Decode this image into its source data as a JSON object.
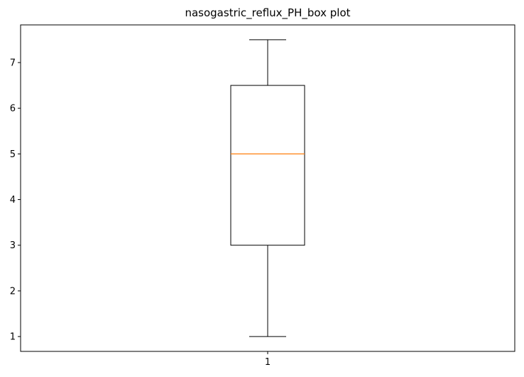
{
  "chart_data": {
    "type": "box",
    "title": "nasogastric_reflux_PH_box plot",
    "xlabel": "",
    "ylabel": "",
    "categories": [
      "1"
    ],
    "boxes": [
      {
        "category": "1",
        "whisker_low": 1.0,
        "q1": 3.0,
        "median": 5.0,
        "q3": 6.5,
        "whisker_high": 7.5
      }
    ],
    "yticks": [
      1,
      2,
      3,
      4,
      5,
      6,
      7
    ],
    "ylim": [
      0.675,
      7.825
    ],
    "grid": false,
    "colors": {
      "box": "#000000",
      "median": "#ff7f0e",
      "axes": "#000000"
    }
  }
}
